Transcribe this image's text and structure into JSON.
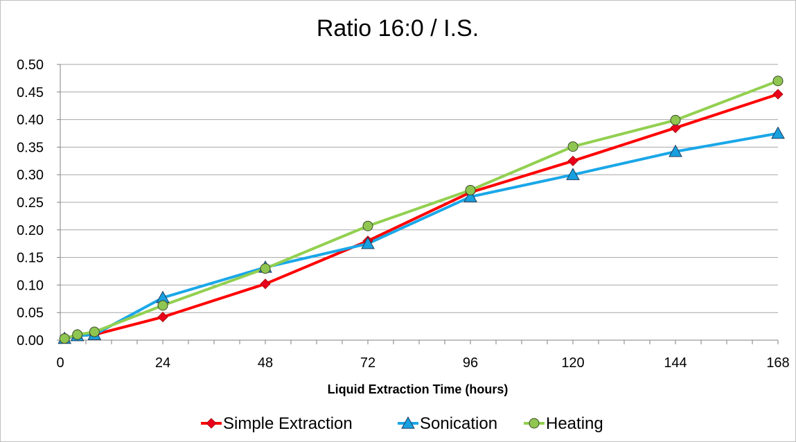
{
  "chart_data": {
    "type": "line",
    "title": "Ratio 16:0 / I.S.",
    "xlabel": "Liquid Extraction Time (hours)",
    "ylabel": "",
    "xlim": [
      0,
      168
    ],
    "ylim": [
      0,
      0.5
    ],
    "x_ticks": [
      0,
      24,
      48,
      72,
      96,
      120,
      144,
      168
    ],
    "y_ticks": [
      0.0,
      0.05,
      0.1,
      0.15,
      0.2,
      0.25,
      0.3,
      0.35,
      0.4,
      0.45,
      0.5
    ],
    "y_tick_labels": [
      "0.00",
      "0.05",
      "0.10",
      "0.15",
      "0.20",
      "0.25",
      "0.30",
      "0.35",
      "0.40",
      "0.45",
      "0.50"
    ],
    "grid": "horizontal",
    "legend_position": "bottom",
    "series": [
      {
        "name": "Simple Extraction",
        "color": "#ff0000",
        "marker": "diamond",
        "marker_color": "#e8001c",
        "points": [
          [
            1,
            0.003
          ],
          [
            4,
            0.008
          ],
          [
            8,
            0.01
          ],
          [
            24,
            0.042
          ],
          [
            48,
            0.102
          ],
          [
            72,
            0.18
          ],
          [
            96,
            0.268
          ],
          [
            120,
            0.325
          ],
          [
            144,
            0.385
          ],
          [
            168,
            0.446
          ]
        ]
      },
      {
        "name": "Sonication",
        "color": "#1aa7e8",
        "marker": "triangle",
        "marker_color": "#17a0e0",
        "points": [
          [
            1,
            0.003
          ],
          [
            4,
            0.008
          ],
          [
            8,
            0.01
          ],
          [
            24,
            0.077
          ],
          [
            48,
            0.132
          ],
          [
            72,
            0.175
          ],
          [
            96,
            0.26
          ],
          [
            120,
            0.3
          ],
          [
            144,
            0.342
          ],
          [
            168,
            0.375
          ]
        ]
      },
      {
        "name": "Heating",
        "color": "#92d050",
        "marker": "circle",
        "marker_color": "#8fc651",
        "points": [
          [
            1,
            0.003
          ],
          [
            4,
            0.01
          ],
          [
            8,
            0.015
          ],
          [
            24,
            0.063
          ],
          [
            48,
            0.13
          ],
          [
            72,
            0.207
          ],
          [
            96,
            0.272
          ],
          [
            120,
            0.351
          ],
          [
            144,
            0.399
          ],
          [
            168,
            0.47
          ]
        ]
      }
    ]
  }
}
